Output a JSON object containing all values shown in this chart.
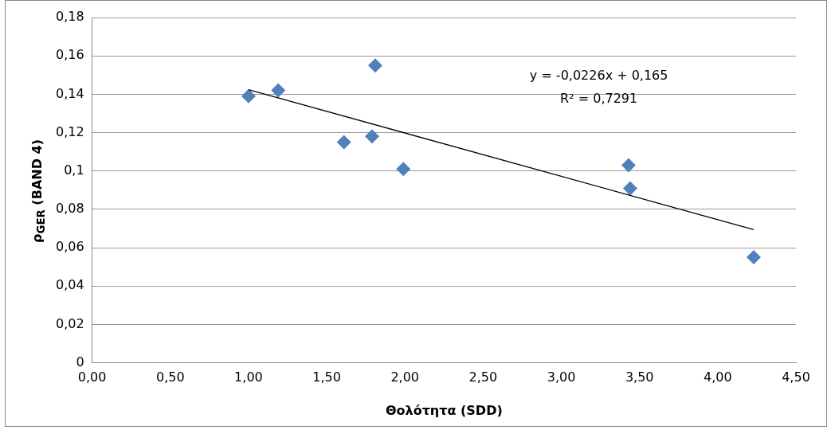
{
  "chart_data": {
    "type": "scatter",
    "xlabel": "Θολότητα (SDD)",
    "ylabel": "ρ$_{GER}$ (BAND 4)",
    "series": [
      {
        "color": "#4f81bd",
        "marker": "diamond",
        "x": [
          1.0,
          1.19,
          1.81,
          1.61,
          1.79,
          1.99,
          3.43,
          3.44,
          4.23
        ],
        "values": [
          0.139,
          0.142,
          0.155,
          0.115,
          0.118,
          0.101,
          0.103,
          0.091,
          0.055
        ]
      },
      {
        "type": "line",
        "color": "#000000",
        "marker": "none",
        "x": [
          1.0,
          4.23
        ],
        "values": [
          0.1424,
          0.0694
        ]
      }
    ],
    "annotations": [
      "y = -0,0226x + 0,165",
      "R² = 0,7291"
    ],
    "xlim": [
      0,
      4.5
    ],
    "xticks": [
      {
        "value": 0,
        "label": "0,00"
      },
      {
        "value": 0.5,
        "label": "0,50"
      },
      {
        "value": 1,
        "label": "1,00"
      },
      {
        "value": 1.5,
        "label": "1,50"
      },
      {
        "value": 2,
        "label": "2,00"
      },
      {
        "value": 2.5,
        "label": "2,50"
      },
      {
        "value": 3,
        "label": "3,00"
      },
      {
        "value": 3.5,
        "label": "3,50"
      },
      {
        "value": 4,
        "label": "4,00"
      },
      {
        "value": 4.5,
        "label": "4,50"
      }
    ],
    "ylim": [
      0,
      0.18
    ],
    "yticks": [
      0,
      {
        "value": 0.02,
        "label": "0,02"
      },
      {
        "value": 0.04,
        "label": "0,04"
      },
      {
        "value": 0.06,
        "label": "0,06"
      },
      {
        "value": 0.08,
        "label": "0,08"
      },
      {
        "value": 0.1,
        "label": "0,1"
      },
      {
        "value": 0.12,
        "label": "0,12"
      },
      {
        "value": 0.14,
        "label": "0,14"
      },
      {
        "value": 0.16,
        "label": "0,16"
      },
      {
        "value": 0.18,
        "label": "0,18"
      }
    ],
    "grid": "y",
    "legend": false
  }
}
